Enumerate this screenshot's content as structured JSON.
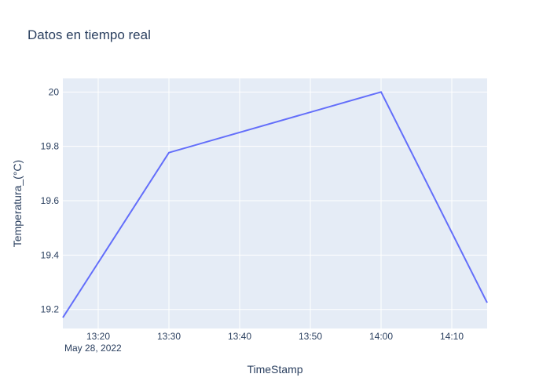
{
  "chart_data": {
    "type": "line",
    "title": "Datos en tiempo real",
    "xlabel": "TimeStamp",
    "ylabel": "Temperatura_(°C)",
    "x_tick_date": "May 28, 2022",
    "x_ticks": [
      "13:20",
      "13:30",
      "13:40",
      "13:50",
      "14:00",
      "14:10"
    ],
    "xlim": [
      "2022-05-28 13:15",
      "2022-05-28 14:15"
    ],
    "y_ticks": [
      19.2,
      19.4,
      19.6,
      19.8,
      20
    ],
    "y_tick_labels": [
      "19.2",
      "19.4",
      "19.6",
      "19.8",
      "20"
    ],
    "ylim": [
      19.13,
      20.05
    ],
    "grid": true,
    "series": [
      {
        "color": "#636efa",
        "x": [
          "2022-05-28 13:15",
          "2022-05-28 13:30",
          "2022-05-28 14:00",
          "2022-05-28 14:15"
        ],
        "y": [
          19.17,
          19.777,
          20.0,
          19.225
        ]
      }
    ],
    "plot_bgcolor": "#e5ecf6",
    "text_color": "#2a3f5f"
  }
}
